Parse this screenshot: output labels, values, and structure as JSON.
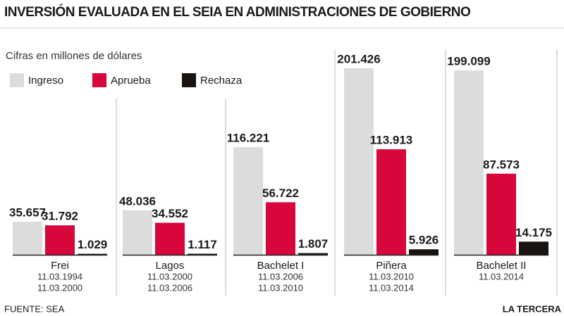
{
  "chart_data": {
    "type": "bar",
    "title": "INVERSIÓN EVALUADA EN EL SEIA EN ADMINISTRACIONES DE GOBIERNO",
    "subtitle": "Cifras en millones de dólares",
    "categories": [
      "Frei",
      "Lagos",
      "Bachelet I",
      "Piñera",
      "Bachelet II"
    ],
    "dates": [
      [
        "11.03.1994",
        "11.03.2000"
      ],
      [
        "11.03.2000",
        "11.03.2006"
      ],
      [
        "11.03.2006",
        "11.03.2010"
      ],
      [
        "11.03.2010",
        "11.03.2014"
      ],
      [
        "11.03.2014"
      ]
    ],
    "series": [
      {
        "name": "Ingreso",
        "color": "#dcdcdc",
        "values": [
          35657,
          48036,
          116221,
          201426,
          199099
        ],
        "value_labels": [
          "35.657",
          "48.036",
          "116.221",
          "201.426",
          "199.099"
        ]
      },
      {
        "name": "Aprueba",
        "color": "#d7063b",
        "values": [
          31792,
          34552,
          56722,
          113913,
          87573
        ],
        "value_labels": [
          "31.792",
          "34.552",
          "56.722",
          "113.913",
          "87.573"
        ]
      },
      {
        "name": "Rechaza",
        "color": "#1a1410",
        "values": [
          1029,
          1117,
          1807,
          5926,
          14175
        ],
        "value_labels": [
          "1.029",
          "1.117",
          "1.807",
          "5.926",
          "14.175"
        ]
      }
    ],
    "source": "FUENTE: SEA",
    "publisher": "LA TERCERA"
  }
}
